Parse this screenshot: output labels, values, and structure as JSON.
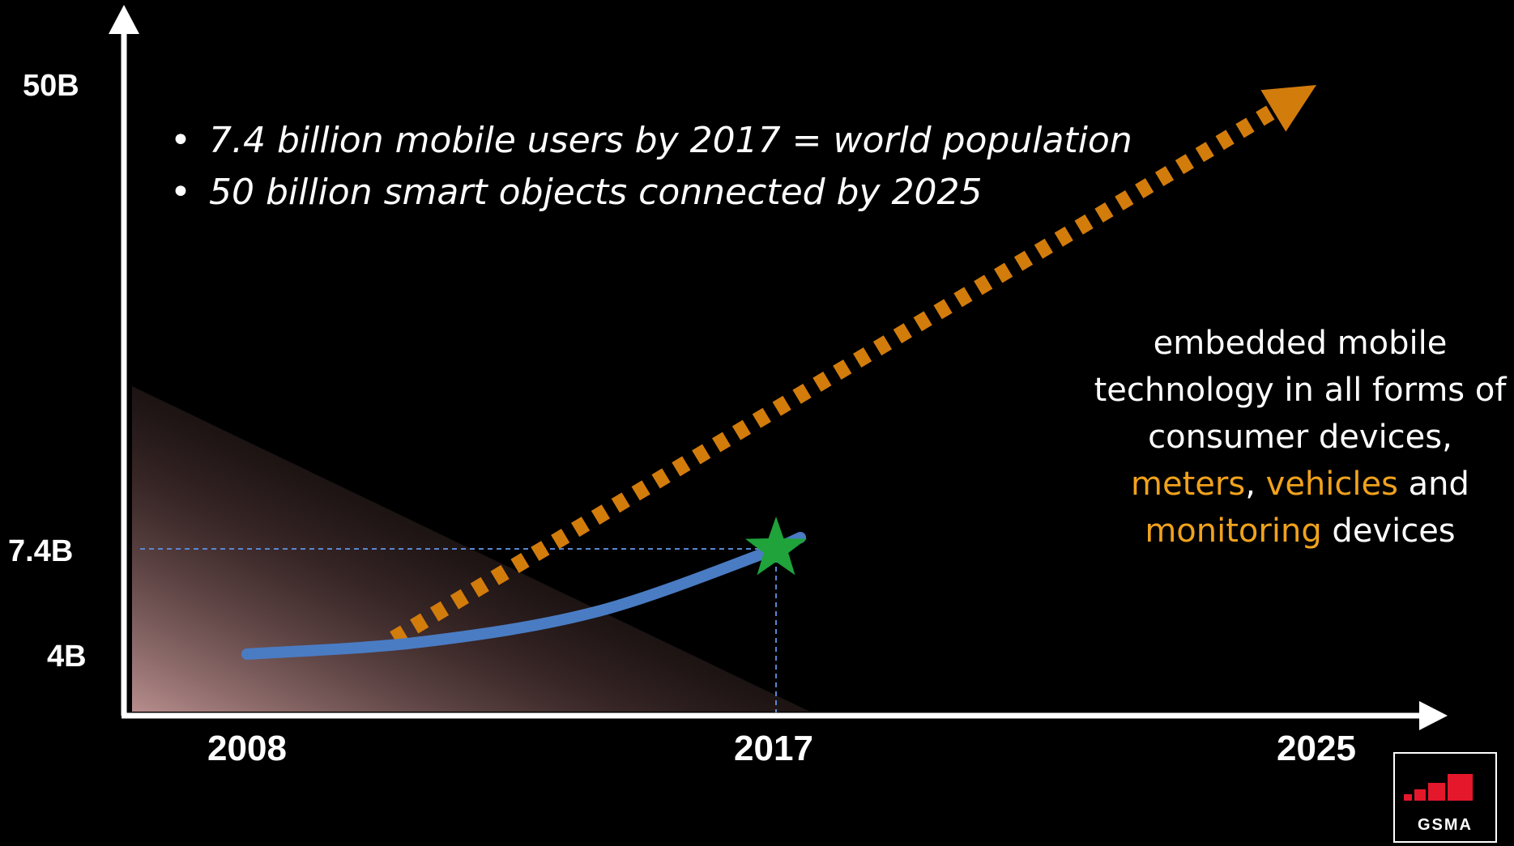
{
  "chart_data": {
    "type": "line",
    "title": "",
    "xlabel": "",
    "ylabel": "",
    "x_ticks": [
      "2008",
      "2017",
      "2025"
    ],
    "y_ticks": [
      "4B",
      "7.4B",
      "50B"
    ],
    "series": [
      {
        "name": "",
        "style": "solid",
        "color": "#4a7cc4",
        "points": [
          [
            2008,
            4.0
          ],
          [
            2011,
            4.4
          ],
          [
            2014,
            5.4
          ],
          [
            2017,
            7.4
          ]
        ]
      },
      {
        "name": "",
        "style": "dotted-arrow",
        "color": "#d27c0c",
        "points": [
          [
            2010.5,
            4.5
          ],
          [
            2025,
            50
          ]
        ]
      }
    ],
    "markers": [
      {
        "x": 2017,
        "y": 7.4,
        "shape": "star",
        "color": "#1fa33a"
      }
    ],
    "reference_lines": [
      {
        "x": 2017,
        "y": 7.4,
        "style": "dashed",
        "color": "#5a86d0"
      }
    ],
    "grid": false,
    "legend": "none"
  },
  "bullets": [
    "7.4 billion mobile users by 2017 = world population",
    "50 billion smart objects connected by 2025"
  ],
  "bullet_symbol": "•",
  "annotation": {
    "line1": "embedded mobile",
    "line2": "technology in all forms of",
    "line3": "consumer devices,",
    "hl_meters": "meters",
    "comma": ",",
    "hl_vehicles": "vehicles",
    "and": "and",
    "hl_monitoring": "monitoring",
    "devices": "devices"
  },
  "logo_text": "GSMA",
  "colors": {
    "background": "#000000",
    "axis": "#ffffff",
    "highlight": "#f0a21c",
    "logo_red": "#e4172b"
  }
}
